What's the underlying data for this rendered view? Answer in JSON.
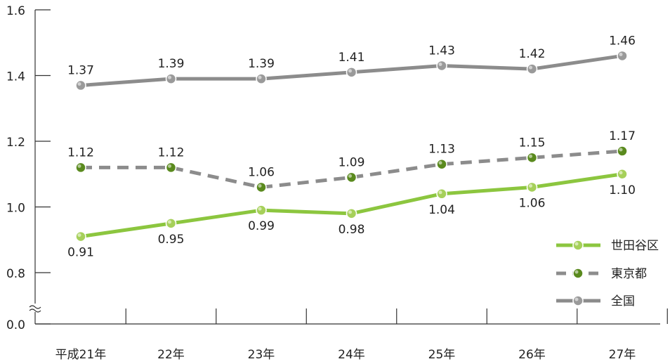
{
  "chart_data": {
    "type": "line",
    "categories": [
      "平成21年",
      "22年",
      "23年",
      "24年",
      "25年",
      "26年",
      "27年"
    ],
    "yticks": [
      "0.0",
      "0.8",
      "1.0",
      "1.2",
      "1.4",
      "1.6"
    ],
    "y_axis_break": true,
    "ylim": [
      0.8,
      1.6
    ],
    "grid": false,
    "legend_position": "bottom-right",
    "series": [
      {
        "name": "世田谷区",
        "values": [
          0.91,
          0.95,
          0.99,
          0.98,
          1.04,
          1.06,
          1.1
        ],
        "labels": [
          "0.91",
          "0.95",
          "0.99",
          "0.98",
          "1.04",
          "1.06",
          "1.10"
        ],
        "label_position": "below",
        "line_color": "#8cc63f",
        "marker_color": "#a6d05a",
        "dashed": false
      },
      {
        "name": "東京都",
        "values": [
          1.12,
          1.12,
          1.06,
          1.09,
          1.13,
          1.15,
          1.17
        ],
        "labels": [
          "1.12",
          "1.12",
          "1.06",
          "1.09",
          "1.13",
          "1.15",
          "1.17"
        ],
        "label_position": "above",
        "line_color": "#8c8c8c",
        "marker_color": "#5a8a1e",
        "dashed": true
      },
      {
        "name": "全国",
        "values": [
          1.37,
          1.39,
          1.39,
          1.41,
          1.43,
          1.42,
          1.46
        ],
        "labels": [
          "1.37",
          "1.39",
          "1.39",
          "1.41",
          "1.43",
          "1.42",
          "1.46"
        ],
        "label_position": "above",
        "line_color": "#8c8c8c",
        "marker_color": "#9a9a9a",
        "dashed": false
      }
    ]
  }
}
